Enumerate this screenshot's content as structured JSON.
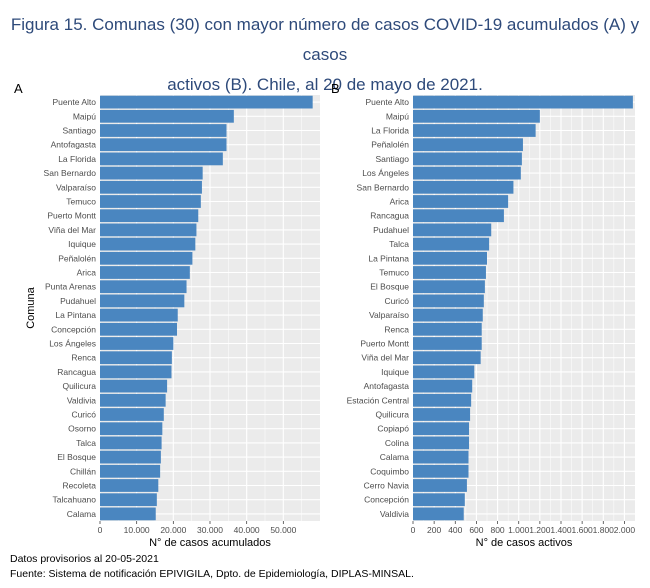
{
  "figure": {
    "title_line1": "Figura 15. Comunas (30) con mayor número de casos COVID-19 acumulados (A) y casos",
    "title_line2": "activos (B). Chile, al 20 de mayo de 2021.",
    "footer_line1": "Datos provisorios al 20-05-2021",
    "footer_line2": "Fuente: Sistema de notificación EPIVIGILA, Dpto. de Epidemiología, DIPLAS-MINSAL."
  },
  "colors": {
    "bar": "#4a86c0",
    "panel_bg": "#ebebeb",
    "grid": "#ffffff",
    "title": "#2e4a7a"
  },
  "chart_data": [
    {
      "panel": "A",
      "type": "bar",
      "orientation": "horizontal",
      "xlabel": "N° de casos acumulados",
      "ylabel": "Comuna",
      "xlim": [
        0,
        60000
      ],
      "xticks": [
        0,
        10000,
        20000,
        30000,
        40000,
        50000
      ],
      "xtick_labels": [
        "0",
        "10.000",
        "20.000",
        "30.000",
        "40.000",
        "50.000"
      ],
      "categories": [
        "Puente Alto",
        "Maipú",
        "Santiago",
        "Antofagasta",
        "La Florida",
        "San Bernardo",
        "Valparaíso",
        "Temuco",
        "Puerto Montt",
        "Viña del Mar",
        "Iquique",
        "Peñalolén",
        "Arica",
        "Punta Arenas",
        "Pudahuel",
        "La Pintana",
        "Concepción",
        "Los Ángeles",
        "Renca",
        "Rancagua",
        "Quilicura",
        "Valdivia",
        "Curicó",
        "Osorno",
        "Talca",
        "El Bosque",
        "Chillán",
        "Recoleta",
        "Talcahuano",
        "Calama"
      ],
      "values": [
        58000,
        36500,
        34500,
        34500,
        33500,
        28000,
        27800,
        27500,
        26800,
        26300,
        26000,
        25200,
        24500,
        23600,
        23000,
        21200,
        21000,
        20000,
        19600,
        19500,
        18300,
        17900,
        17400,
        17000,
        16800,
        16600,
        16400,
        15900,
        15500,
        15200
      ]
    },
    {
      "panel": "B",
      "type": "bar",
      "orientation": "horizontal",
      "xlabel": "N° de casos activos",
      "xlim": [
        0,
        2100
      ],
      "xticks": [
        0,
        200,
        400,
        600,
        800,
        1000,
        1200,
        1400,
        1600,
        1800,
        2000
      ],
      "xtick_labels": [
        "0",
        "200",
        "400",
        "600",
        "800",
        "1.000",
        "1.200",
        "1.400",
        "1.600",
        "1.800",
        "2.000"
      ],
      "categories": [
        "Puente Alto",
        "Maipú",
        "La Florida",
        "Peñalolén",
        "Santiago",
        "Los Ángeles",
        "San Bernardo",
        "Arica",
        "Rancagua",
        "Pudahuel",
        "Talca",
        "La Pintana",
        "Temuco",
        "El Bosque",
        "Curicó",
        "Valparaíso",
        "Renca",
        "Puerto Montt",
        "Viña del Mar",
        "Iquique",
        "Antofagasta",
        "Estación Central",
        "Quilicura",
        "Copiapó",
        "Colina",
        "Calama",
        "Coquimbo",
        "Cerro Navia",
        "Concepción",
        "Valdivia"
      ],
      "values": [
        2080,
        1200,
        1160,
        1040,
        1030,
        1020,
        950,
        900,
        860,
        740,
        720,
        700,
        690,
        680,
        670,
        660,
        650,
        650,
        640,
        580,
        560,
        550,
        540,
        530,
        530,
        525,
        525,
        510,
        490,
        480
      ]
    }
  ]
}
